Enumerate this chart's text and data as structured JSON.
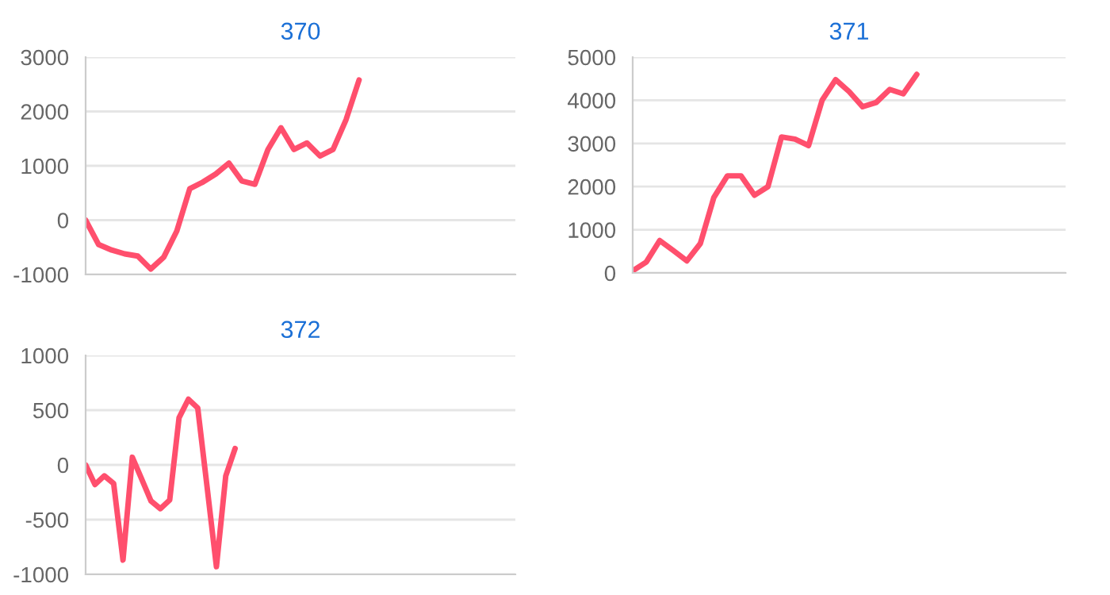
{
  "chart_data": [
    {
      "type": "line",
      "title": "370",
      "categories": [
        null,
        null,
        null,
        null,
        null,
        null,
        null,
        null,
        null,
        null,
        null,
        null,
        null,
        null,
        null,
        null,
        null,
        null,
        null,
        null,
        null,
        null,
        null,
        null,
        null,
        null,
        null,
        null,
        null,
        null,
        null,
        null,
        null,
        null
      ],
      "series": [
        {
          "color": "#ff4f6d",
          "values": [
            0,
            -450,
            -550,
            -620,
            -660,
            -900,
            -680,
            -200,
            580,
            700,
            850,
            1050,
            720,
            660,
            1300,
            1700,
            1300,
            1420,
            1180,
            1300,
            1850,
            2580,
            null,
            null,
            null,
            null,
            null,
            null,
            null,
            null,
            null,
            null,
            null,
            null
          ]
        }
      ],
      "ylim": [
        -1000,
        3000
      ],
      "yticks": [
        -1000,
        0,
        1000,
        2000,
        3000
      ],
      "grid": "y",
      "marker": "none",
      "line_style": "solid"
    },
    {
      "type": "line",
      "title": "371",
      "categories": [
        null,
        null,
        null,
        null,
        null,
        null,
        null,
        null,
        null,
        null,
        null,
        null,
        null,
        null,
        null,
        null,
        null,
        null,
        null,
        null,
        null,
        null,
        null,
        null,
        null,
        null,
        null,
        null,
        null,
        null,
        null,
        null,
        null
      ],
      "series": [
        {
          "color": "#ff4f6d",
          "values": [
            50,
            250,
            750,
            520,
            280,
            680,
            1750,
            2250,
            2250,
            1800,
            2000,
            3150,
            3100,
            2950,
            4000,
            4480,
            4200,
            3850,
            3950,
            4250,
            4150,
            4600,
            null,
            null,
            null,
            null,
            null,
            null,
            null,
            null,
            null,
            null,
            null
          ]
        }
      ],
      "ylim": [
        0,
        5000
      ],
      "yticks": [
        0,
        1000,
        2000,
        3000,
        4000,
        5000
      ],
      "grid": "y",
      "marker": "none",
      "line_style": "solid"
    },
    {
      "type": "line",
      "title": "372",
      "categories": [
        null,
        null,
        null,
        null,
        null,
        null,
        null,
        null,
        null,
        null,
        null,
        null,
        null,
        null,
        null,
        null,
        null,
        null,
        null,
        null,
        null,
        null,
        null,
        null,
        null,
        null,
        null,
        null,
        null,
        null,
        null,
        null,
        null,
        null,
        null,
        null,
        null,
        null,
        null,
        null,
        null,
        null,
        null,
        null,
        null,
        null,
        null
      ],
      "series": [
        {
          "color": "#ff4f6d",
          "values": [
            0,
            -180,
            -100,
            -170,
            -870,
            70,
            -130,
            -330,
            -400,
            -320,
            430,
            600,
            520,
            -200,
            -930,
            -100,
            150,
            null,
            null,
            null,
            null,
            null,
            null,
            null,
            null,
            null,
            null,
            null,
            null,
            null,
            null,
            null,
            null,
            null,
            null,
            null,
            null,
            null,
            null,
            null,
            null,
            null,
            null,
            null,
            null,
            null,
            null
          ]
        }
      ],
      "ylim": [
        -1000,
        1000
      ],
      "yticks": [
        -1000,
        -500,
        0,
        500,
        1000
      ],
      "grid": "y",
      "marker": "none",
      "line_style": "solid"
    }
  ]
}
